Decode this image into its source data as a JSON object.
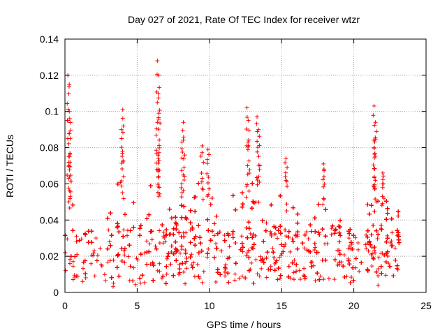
{
  "chart_data": {
    "type": "scatter",
    "title": "Day 027 of 2021, Rate Of TEC Index for receiver wtzr",
    "xlabel": "GPS time / hours",
    "ylabel": "ROTI / TECUs",
    "xlim": [
      0,
      25
    ],
    "ylim": [
      0,
      0.14
    ],
    "xticks": [
      0,
      5,
      10,
      15,
      20,
      25
    ],
    "xtick_labels": [
      "0",
      "5",
      "10",
      "15",
      "20",
      "25"
    ],
    "yticks": [
      0,
      0.02,
      0.04,
      0.06,
      0.08,
      0.1,
      0.12,
      0.14
    ],
    "ytick_labels": [
      "0",
      "0.02",
      "0.04",
      "0.06",
      "0.08",
      "0.1",
      "0.12",
      "0.14"
    ],
    "grid": true,
    "marker": "+",
    "color": "#ff0000",
    "data_range_x": [
      0,
      23.2
    ],
    "baseline_band": [
      0.005,
      0.035
    ],
    "peaks": [
      {
        "x": 0.2,
        "y": 0.12
      },
      {
        "x": 0.3,
        "y": 0.115
      },
      {
        "x": 0.3,
        "y": 0.1
      },
      {
        "x": 0.35,
        "y": 0.072
      },
      {
        "x": 4.0,
        "y": 0.101
      },
      {
        "x": 3.9,
        "y": 0.09
      },
      {
        "x": 6.4,
        "y": 0.128
      },
      {
        "x": 6.5,
        "y": 0.12
      },
      {
        "x": 6.5,
        "y": 0.099
      },
      {
        "x": 6.4,
        "y": 0.094
      },
      {
        "x": 8.2,
        "y": 0.094
      },
      {
        "x": 8.1,
        "y": 0.083
      },
      {
        "x": 9.5,
        "y": 0.081
      },
      {
        "x": 9.9,
        "y": 0.079
      },
      {
        "x": 12.6,
        "y": 0.102
      },
      {
        "x": 12.7,
        "y": 0.095
      },
      {
        "x": 13.3,
        "y": 0.097
      },
      {
        "x": 13.4,
        "y": 0.09
      },
      {
        "x": 15.3,
        "y": 0.074
      },
      {
        "x": 17.9,
        "y": 0.071
      },
      {
        "x": 21.4,
        "y": 0.103
      },
      {
        "x": 21.5,
        "y": 0.094
      },
      {
        "x": 21.4,
        "y": 0.08
      },
      {
        "x": 22.0,
        "y": 0.066
      }
    ],
    "envelope": [
      {
        "x": 0.0,
        "y": 0.03
      },
      {
        "x": 0.3,
        "y": 0.058
      },
      {
        "x": 1.0,
        "y": 0.034
      },
      {
        "x": 2.0,
        "y": 0.036
      },
      {
        "x": 3.0,
        "y": 0.05
      },
      {
        "x": 4.0,
        "y": 0.065
      },
      {
        "x": 5.0,
        "y": 0.047
      },
      {
        "x": 6.4,
        "y": 0.068
      },
      {
        "x": 7.5,
        "y": 0.045
      },
      {
        "x": 8.3,
        "y": 0.055
      },
      {
        "x": 9.5,
        "y": 0.062
      },
      {
        "x": 10.5,
        "y": 0.05
      },
      {
        "x": 11.5,
        "y": 0.052
      },
      {
        "x": 12.7,
        "y": 0.07
      },
      {
        "x": 13.4,
        "y": 0.065
      },
      {
        "x": 14.5,
        "y": 0.045
      },
      {
        "x": 15.3,
        "y": 0.062
      },
      {
        "x": 16.5,
        "y": 0.04
      },
      {
        "x": 17.5,
        "y": 0.05
      },
      {
        "x": 18.5,
        "y": 0.045
      },
      {
        "x": 19.5,
        "y": 0.04
      },
      {
        "x": 20.5,
        "y": 0.045
      },
      {
        "x": 21.5,
        "y": 0.06
      },
      {
        "x": 22.5,
        "y": 0.055
      },
      {
        "x": 23.2,
        "y": 0.045
      }
    ]
  }
}
